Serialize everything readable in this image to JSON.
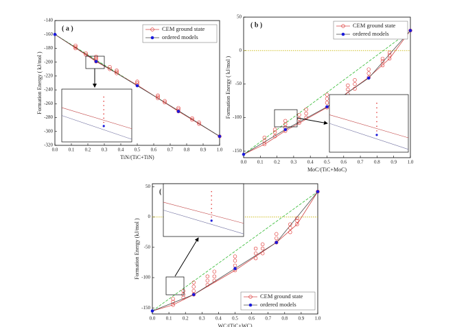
{
  "chart_data": [
    {
      "type": "scatter",
      "panel_label": "( a )",
      "x_label": "TiN/(TiC+TiN)",
      "y_label": "Formation Energy ( kJ/mol )",
      "xlim": [
        0,
        1
      ],
      "ylim": [
        -320,
        -140
      ],
      "xticks": [
        {
          "value": 0,
          "label": "0.0"
        },
        0.1,
        0.2,
        0.3,
        0.4,
        0.5,
        0.6,
        0.7,
        0.8,
        0.9,
        {
          "value": 1,
          "label": "1.0"
        }
      ],
      "yticks": [
        -320,
        -300,
        -280,
        -260,
        -240,
        -220,
        -200,
        -180,
        -160,
        -140
      ],
      "legend": "upper right",
      "series": [
        {
          "name": "CEM ground state",
          "color": "#e0302e",
          "marker": "open-circle",
          "x": [
            0.125,
            0.125,
            0.125,
            0.1875,
            0.1875,
            0.25,
            0.25,
            0.25,
            0.25,
            0.3333,
            0.3333,
            0.375,
            0.375,
            0.375,
            0.5,
            0.5,
            0.5,
            0.625,
            0.625,
            0.625,
            0.6667,
            0.6667,
            0.75,
            0.75,
            0.75,
            0.8333,
            0.8333,
            0.875,
            0.875,
            1
          ],
          "values": [
            -178,
            -180,
            -176,
            -187,
            -189,
            -196,
            -199,
            -194,
            -192,
            -207,
            -210,
            -214,
            -216,
            -212,
            -230,
            -233,
            -228,
            -250,
            -252,
            -248,
            -256,
            -258,
            -268,
            -271,
            -266,
            -281,
            -283,
            -287,
            -289,
            -307
          ]
        },
        {
          "name": "ordered models",
          "color": "#1a1adb",
          "marker": "dot",
          "x": [
            0,
            0.25,
            0.5,
            0.75,
            1
          ],
          "values": [
            -160,
            -199,
            -234,
            -271,
            -307
          ]
        }
      ],
      "lines": [
        {
          "color": "#2db82d",
          "style": "dashed",
          "x": [
            0,
            1
          ],
          "values": [
            -160,
            -307
          ]
        },
        {
          "color": "#d04545",
          "style": "solid",
          "x": [
            0,
            0.25,
            0.5,
            0.75,
            1
          ],
          "values": [
            -160,
            -199,
            -233,
            -271,
            -307
          ]
        },
        {
          "color": "#444444",
          "style": "solid",
          "x": [
            0,
            0.25,
            0.5,
            0.75,
            1
          ],
          "values": [
            -160,
            -198,
            -234,
            -270,
            -307
          ]
        }
      ]
    },
    {
      "type": "scatter",
      "panel_label": "( b )",
      "x_label": "MoC/(TiC+MoC)",
      "y_label": "Formation Energy ( kJ/mol )",
      "xlim": [
        0,
        1
      ],
      "ylim": [
        -160,
        50
      ],
      "xticks": [
        {
          "value": 0,
          "label": "0.0"
        },
        0.1,
        0.2,
        0.3,
        0.4,
        0.5,
        0.6,
        0.7,
        0.8,
        0.9,
        {
          "value": 1,
          "label": "1.0"
        }
      ],
      "yticks": [
        -150,
        -100,
        -50,
        0,
        50
      ],
      "hline": 0,
      "hline_color": "#c8b400",
      "legend": "upper right",
      "series": [
        {
          "name": "CEM ground state",
          "color": "#e0302e",
          "marker": "open-circle",
          "x": [
            0.125,
            0.125,
            0.125,
            0.1875,
            0.1875,
            0.1875,
            0.25,
            0.25,
            0.25,
            0.25,
            0.3333,
            0.3333,
            0.3333,
            0.375,
            0.375,
            0.375,
            0.5,
            0.5,
            0.5,
            0.5,
            0.625,
            0.625,
            0.625,
            0.6667,
            0.6667,
            0.6667,
            0.75,
            0.75,
            0.75,
            0.8333,
            0.8333,
            0.8333,
            0.875,
            0.875,
            0.875,
            1
          ],
          "values": [
            -140,
            -135,
            -130,
            -128,
            -122,
            -118,
            -120,
            -115,
            -110,
            -105,
            -108,
            -102,
            -96,
            -100,
            -94,
            -88,
            -85,
            -78,
            -72,
            -66,
            -65,
            -58,
            -52,
            -57,
            -50,
            -44,
            -40,
            -34,
            -28,
            -22,
            -16,
            -12,
            -12,
            -7,
            -3,
            30
          ]
        },
        {
          "name": "ordered models",
          "color": "#1a1adb",
          "marker": "dot",
          "x": [
            0,
            0.25,
            0.5,
            0.75,
            1
          ],
          "values": [
            -155,
            -118,
            -84,
            -41,
            30
          ]
        }
      ],
      "lines": [
        {
          "color": "#2db82d",
          "style": "dashed",
          "x": [
            0,
            1
          ],
          "values": [
            -155,
            30
          ]
        },
        {
          "color": "#d04545",
          "style": "solid",
          "x": [
            0,
            0.125,
            0.25,
            0.5,
            0.75,
            0.875,
            1
          ],
          "values": [
            -155,
            -140,
            -120,
            -85,
            -40,
            -12,
            30
          ]
        },
        {
          "color": "#444444",
          "style": "solid",
          "x": [
            0,
            0.25,
            0.5,
            0.75,
            1
          ],
          "values": [
            -155,
            -118,
            -84,
            -41,
            30
          ]
        }
      ]
    },
    {
      "type": "scatter",
      "panel_label": "( c )",
      "x_label": "WC/(TiC+WC)",
      "y_label": "Formation Energy (kJ/mol )",
      "xlim": [
        0,
        1
      ],
      "ylim": [
        -160,
        55
      ],
      "xticks": [
        {
          "value": 0,
          "label": "0.0"
        },
        0.1,
        0.2,
        0.3,
        0.4,
        0.5,
        0.6,
        0.7,
        0.8,
        0.9,
        {
          "value": 1,
          "label": "1.0"
        }
      ],
      "yticks": [
        -150,
        -100,
        -50,
        0,
        50
      ],
      "hline": 0,
      "hline_color": "#c8b400",
      "legend": "lower right",
      "series": [
        {
          "name": "CEM ground state",
          "color": "#e0302e",
          "marker": "open-circle",
          "x": [
            0.125,
            0.125,
            0.125,
            0.1875,
            0.1875,
            0.1875,
            0.25,
            0.25,
            0.25,
            0.25,
            0.3333,
            0.3333,
            0.3333,
            0.375,
            0.375,
            0.375,
            0.5,
            0.5,
            0.5,
            0.5,
            0.625,
            0.625,
            0.625,
            0.6667,
            0.6667,
            0.6667,
            0.75,
            0.75,
            0.75,
            0.8333,
            0.8333,
            0.8333,
            0.875,
            0.875,
            0.875,
            1
          ],
          "values": [
            -145,
            -140,
            -135,
            -133,
            -128,
            -122,
            -128,
            -122,
            -115,
            -108,
            -112,
            -105,
            -98,
            -105,
            -98,
            -90,
            -88,
            -80,
            -72,
            -65,
            -68,
            -60,
            -52,
            -60,
            -52,
            -45,
            -42,
            -35,
            -28,
            -25,
            -18,
            -12,
            -12,
            -6,
            -2,
            42
          ]
        },
        {
          "name": "ordered models",
          "color": "#1a1adb",
          "marker": "dot",
          "x": [
            0,
            0.25,
            0.5,
            0.75,
            1
          ],
          "values": [
            -155,
            -128,
            -85,
            -42,
            42
          ]
        }
      ],
      "lines": [
        {
          "color": "#2db82d",
          "style": "dashed",
          "x": [
            0,
            1
          ],
          "values": [
            -155,
            42
          ]
        },
        {
          "color": "#d04545",
          "style": "solid",
          "x": [
            0,
            0.125,
            0.25,
            0.5,
            0.75,
            0.875,
            1
          ],
          "values": [
            -155,
            -145,
            -128,
            -88,
            -42,
            -12,
            42
          ]
        },
        {
          "color": "#444444",
          "style": "solid",
          "x": [
            0,
            0.25,
            0.5,
            0.75,
            1
          ],
          "values": [
            -155,
            -128,
            -85,
            -42,
            42
          ]
        }
      ]
    }
  ]
}
